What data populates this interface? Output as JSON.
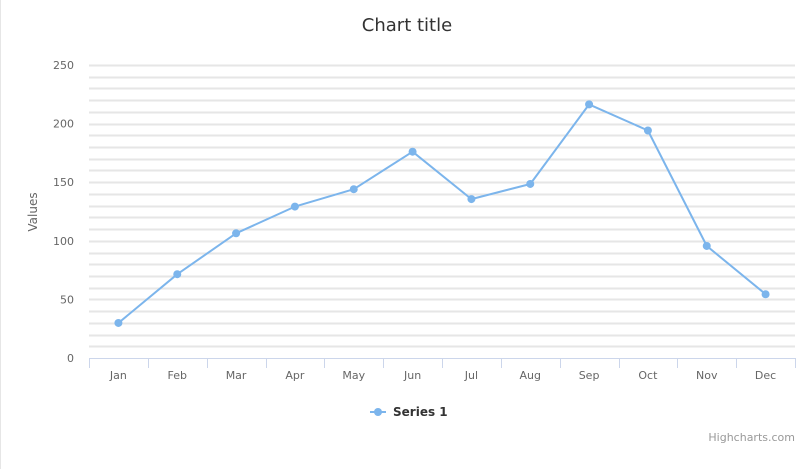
{
  "chart_data": {
    "type": "line",
    "title": "Chart title",
    "xlabel": "",
    "ylabel": "Values",
    "categories": [
      "Jan",
      "Feb",
      "Mar",
      "Apr",
      "May",
      "Jun",
      "Jul",
      "Aug",
      "Sep",
      "Oct",
      "Nov",
      "Dec"
    ],
    "series": [
      {
        "name": "Series 1",
        "values": [
          29.9,
          71.5,
          106.4,
          129.2,
          144.0,
          176.0,
          135.6,
          148.5,
          216.4,
          194.1,
          95.6,
          54.4
        ]
      }
    ],
    "ylim": [
      0,
      250
    ],
    "yticks": [
      0,
      50,
      100,
      150,
      200,
      250
    ],
    "y_minor_step": 10,
    "grid": true,
    "legend_position": "bottom-center",
    "colors": {
      "series": "#7cb5ec",
      "grid": "#e6e6e6",
      "axis": "#ccd6eb"
    }
  },
  "credits": "Highcharts.com"
}
